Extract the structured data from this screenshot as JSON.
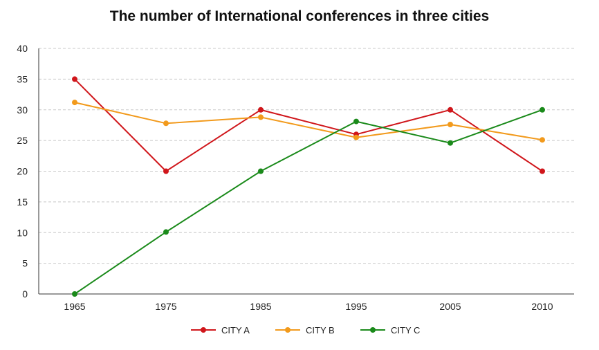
{
  "chart_data": {
    "type": "line",
    "title": "The number of International conferences in three cities",
    "categories": [
      "1965",
      "1975",
      "1985",
      "1995",
      "2005",
      "2010"
    ],
    "ylim": [
      0,
      40
    ],
    "yticks": [
      0,
      5,
      10,
      15,
      20,
      25,
      30,
      35,
      40
    ],
    "grid": "horizontal dashed",
    "legend_position": "bottom",
    "series": [
      {
        "name": "CITY A",
        "color": "#d0161b",
        "values": [
          35,
          20,
          30,
          26,
          30,
          20
        ]
      },
      {
        "name": "CITY B",
        "color": "#f29a1c",
        "values": [
          31.2,
          27.8,
          28.8,
          25.5,
          27.6,
          25.1
        ]
      },
      {
        "name": "CITY C",
        "color": "#1a8a1a",
        "values": [
          0,
          10.1,
          20,
          28.1,
          24.6,
          30
        ]
      }
    ]
  }
}
